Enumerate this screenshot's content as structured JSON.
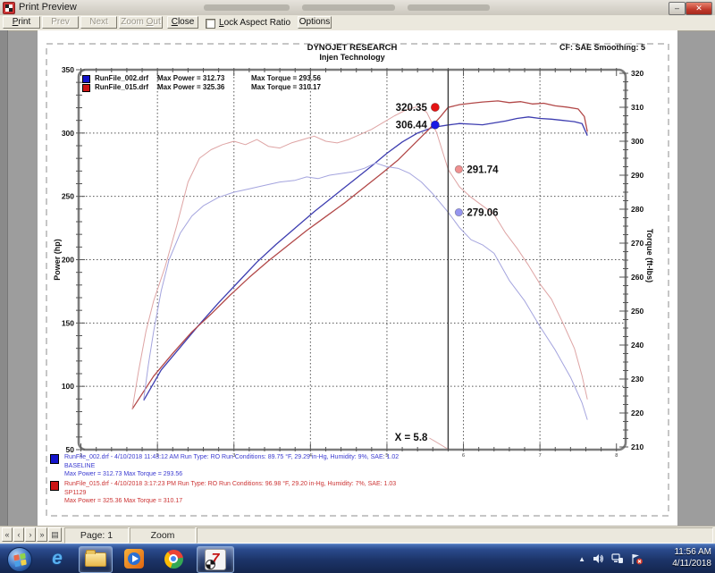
{
  "window": {
    "title": "Print Preview",
    "minimize_glyph": "–",
    "close_glyph": "✕"
  },
  "toolbar": {
    "print": {
      "pre": "",
      "accel": "P",
      "rest": "rint"
    },
    "prev": "Prev",
    "next": "Next",
    "zoom_out": {
      "pre": "Zoom ",
      "accel": "O",
      "rest": "ut"
    },
    "close": {
      "pre": "",
      "accel": "C",
      "rest": "lose"
    },
    "lock_aspect": {
      "pre": "",
      "accel": "L",
      "rest": "ock Aspect Ratio"
    },
    "options": "Options"
  },
  "statusbar": {
    "nav": [
      "«",
      "‹",
      "›",
      "»",
      "▤"
    ],
    "page": "Page: 1",
    "zoom": "Zoom"
  },
  "taskbar": {
    "time": "11:56 AM",
    "date": "4/11/2018",
    "icons": [
      "start-orb",
      "internet-explorer",
      "windows-explorer",
      "windows-media-player",
      "chrome",
      "dynojet-winpep"
    ],
    "tray_icons": [
      "hidden-icons-chevron",
      "volume",
      "network",
      "action-center-flag"
    ]
  },
  "chart_data": {
    "type": "line",
    "title": "DYNOJET RESEARCH",
    "subtitle": "Injen Technology",
    "corner_note": "CF: SAE  Smoothing: 5",
    "left_axis": {
      "label": "Power (hp)",
      "min": 50,
      "max": 350,
      "ticks": [
        50,
        100,
        150,
        200,
        250,
        300,
        350
      ],
      "minor_step": 10
    },
    "right_axis": {
      "label": "Torque (ft-lbs)",
      "min": 210,
      "max": 320,
      "ticks": [
        210,
        220,
        230,
        240,
        250,
        260,
        270,
        280,
        290,
        300,
        310,
        320
      ],
      "minor_step": 2.5
    },
    "x_axis": {
      "min": 0.97,
      "max": 8.12,
      "ticks": [
        1,
        2,
        3,
        4,
        5,
        6,
        7,
        8
      ],
      "minor_step": 0.2,
      "gridline_ticks": [
        2,
        3,
        4,
        5,
        6,
        7
      ]
    },
    "grid": "dotted",
    "cursor": {
      "x": 5.8,
      "label": "X = 5.8"
    },
    "legend": [
      {
        "color": "#1414cc",
        "file": "RunFile_002.drf",
        "power": "Max Power = 312.73",
        "torque": "Max Torque = 293.56"
      },
      {
        "color": "#cc1414",
        "file": "RunFile_015.drf",
        "power": "Max Power = 325.36",
        "torque": "Max Torque = 310.17"
      }
    ],
    "cursor_values": [
      {
        "text": "320.35",
        "value": 320.35,
        "axis": "power",
        "side": "left",
        "dot_x": 5.63,
        "color": "#e41414"
      },
      {
        "text": "306.44",
        "value": 306.44,
        "axis": "power",
        "side": "left",
        "dot_x": 5.63,
        "color": "#1a1ae4"
      },
      {
        "text": "291.74",
        "value": 291.74,
        "axis": "torque",
        "side": "right",
        "dot_x": 5.94,
        "color": "#ef9090"
      },
      {
        "text": "279.06",
        "value": 279.06,
        "axis": "torque",
        "side": "right",
        "dot_x": 5.94,
        "color": "#9595ef"
      }
    ],
    "series": [
      {
        "name": "RunFile_002 Power",
        "axis": "power",
        "color": "#3d3db0",
        "width": 1.3,
        "points": [
          [
            1.82,
            89
          ],
          [
            2.05,
            113
          ],
          [
            2.3,
            131
          ],
          [
            2.55,
            149
          ],
          [
            2.8,
            166
          ],
          [
            3.05,
            182
          ],
          [
            3.3,
            198
          ],
          [
            3.55,
            212
          ],
          [
            3.8,
            225
          ],
          [
            4.05,
            238
          ],
          [
            4.3,
            250
          ],
          [
            4.55,
            262
          ],
          [
            4.8,
            274
          ],
          [
            5.0,
            284
          ],
          [
            5.2,
            293
          ],
          [
            5.4,
            300
          ],
          [
            5.6,
            304.5
          ],
          [
            5.8,
            306.4
          ],
          [
            5.95,
            307.5
          ],
          [
            6.1,
            307
          ],
          [
            6.25,
            306.5
          ],
          [
            6.4,
            308
          ],
          [
            6.55,
            309.5
          ],
          [
            6.7,
            311.5
          ],
          [
            6.85,
            312.7
          ],
          [
            7.0,
            311.5
          ],
          [
            7.15,
            311
          ],
          [
            7.3,
            310
          ],
          [
            7.45,
            309
          ],
          [
            7.55,
            307.5
          ],
          [
            7.62,
            298
          ]
        ]
      },
      {
        "name": "RunFile_015 Power",
        "axis": "power",
        "color": "#b24848",
        "width": 1.3,
        "points": [
          [
            1.67,
            82
          ],
          [
            1.95,
            108
          ],
          [
            2.2,
            126
          ],
          [
            2.45,
            143
          ],
          [
            2.7,
            157
          ],
          [
            2.95,
            172
          ],
          [
            3.2,
            186
          ],
          [
            3.45,
            199
          ],
          [
            3.7,
            211
          ],
          [
            3.95,
            223
          ],
          [
            4.2,
            234
          ],
          [
            4.45,
            245
          ],
          [
            4.7,
            257
          ],
          [
            4.95,
            269
          ],
          [
            5.15,
            279
          ],
          [
            5.35,
            291
          ],
          [
            5.55,
            303
          ],
          [
            5.7,
            313
          ],
          [
            5.8,
            320.3
          ],
          [
            5.95,
            322.5
          ],
          [
            6.1,
            323.5
          ],
          [
            6.25,
            324.5
          ],
          [
            6.45,
            325.4
          ],
          [
            6.6,
            324
          ],
          [
            6.75,
            324.8
          ],
          [
            6.9,
            323
          ],
          [
            7.05,
            323.5
          ],
          [
            7.2,
            321.5
          ],
          [
            7.35,
            320.5
          ],
          [
            7.5,
            319
          ],
          [
            7.58,
            313
          ],
          [
            7.62,
            301
          ]
        ]
      },
      {
        "name": "RunFile_002 Torque",
        "axis": "torque",
        "color": "#a4a4de",
        "width": 1,
        "points": [
          [
            1.82,
            224
          ],
          [
            1.88,
            234
          ],
          [
            1.95,
            244
          ],
          [
            2.05,
            256
          ],
          [
            2.15,
            265
          ],
          [
            2.3,
            273
          ],
          [
            2.45,
            278
          ],
          [
            2.6,
            281
          ],
          [
            2.8,
            283.5
          ],
          [
            3.0,
            285
          ],
          [
            3.2,
            286
          ],
          [
            3.4,
            287
          ],
          [
            3.6,
            288
          ],
          [
            3.8,
            288.5
          ],
          [
            3.95,
            289.5
          ],
          [
            4.1,
            289
          ],
          [
            4.25,
            290
          ],
          [
            4.4,
            290.5
          ],
          [
            4.55,
            291
          ],
          [
            4.7,
            292
          ],
          [
            4.85,
            293.6
          ],
          [
            5.0,
            292.5
          ],
          [
            5.15,
            292
          ],
          [
            5.3,
            290.5
          ],
          [
            5.45,
            288
          ],
          [
            5.6,
            284.5
          ],
          [
            5.8,
            279.1
          ],
          [
            5.95,
            274.5
          ],
          [
            6.1,
            271
          ],
          [
            6.25,
            269.5
          ],
          [
            6.4,
            267
          ],
          [
            6.6,
            259
          ],
          [
            6.8,
            253
          ],
          [
            7.0,
            245.5
          ],
          [
            7.2,
            238.5
          ],
          [
            7.4,
            230.5
          ],
          [
            7.55,
            223
          ],
          [
            7.62,
            218
          ]
        ]
      },
      {
        "name": "RunFile_015 Torque",
        "axis": "torque",
        "color": "#dea4a4",
        "width": 1,
        "points": [
          [
            1.67,
            221
          ],
          [
            1.75,
            232
          ],
          [
            1.85,
            244
          ],
          [
            1.95,
            253
          ],
          [
            2.1,
            263
          ],
          [
            2.25,
            275
          ],
          [
            2.4,
            288
          ],
          [
            2.55,
            295
          ],
          [
            2.7,
            297.5
          ],
          [
            2.85,
            299
          ],
          [
            3.0,
            300
          ],
          [
            3.15,
            299
          ],
          [
            3.3,
            300.5
          ],
          [
            3.45,
            298.5
          ],
          [
            3.6,
            298
          ],
          [
            3.75,
            299.5
          ],
          [
            3.9,
            300.5
          ],
          [
            4.05,
            301.5
          ],
          [
            4.2,
            300
          ],
          [
            4.35,
            299.5
          ],
          [
            4.5,
            300.5
          ],
          [
            4.65,
            302
          ],
          [
            4.8,
            303.5
          ],
          [
            4.95,
            305.5
          ],
          [
            5.1,
            307.5
          ],
          [
            5.25,
            309.2
          ],
          [
            5.4,
            310.2
          ],
          [
            5.52,
            308.5
          ],
          [
            5.65,
            302.5
          ],
          [
            5.8,
            291.7
          ],
          [
            5.95,
            286.5
          ],
          [
            6.1,
            283.5
          ],
          [
            6.25,
            281
          ],
          [
            6.4,
            278.5
          ],
          [
            6.55,
            273
          ],
          [
            6.7,
            268.5
          ],
          [
            6.85,
            263.5
          ],
          [
            7.0,
            258
          ],
          [
            7.15,
            253.5
          ],
          [
            7.3,
            246.5
          ],
          [
            7.45,
            239
          ],
          [
            7.55,
            231
          ],
          [
            7.62,
            224
          ]
        ]
      }
    ]
  },
  "annotations": [
    {
      "color": "#1414cc",
      "text_color": "#3b3bd0",
      "line1": "RunFile_002.drf - 4/10/2018 11:43:12 AM  Run Type: RO  Run Conditions: 89.75 °F, 29.29 in-Hg,  Humidity:  9%, SAE: 1.02",
      "line2": "BASELINE",
      "line3": "Max Power = 312.73  Max Torque = 293.56"
    },
    {
      "color": "#cc1414",
      "text_color": "#cc3434",
      "line1": "RunFile_015.drf - 4/10/2018 3:17:23 PM  Run Type: RO  Run Conditions: 96.98 °F, 29.20 in-Hg,  Humidity:  7%, SAE: 1.03",
      "line2": "SP1129",
      "line3": "Max Power = 325.36  Max Torque = 310.17"
    }
  ]
}
